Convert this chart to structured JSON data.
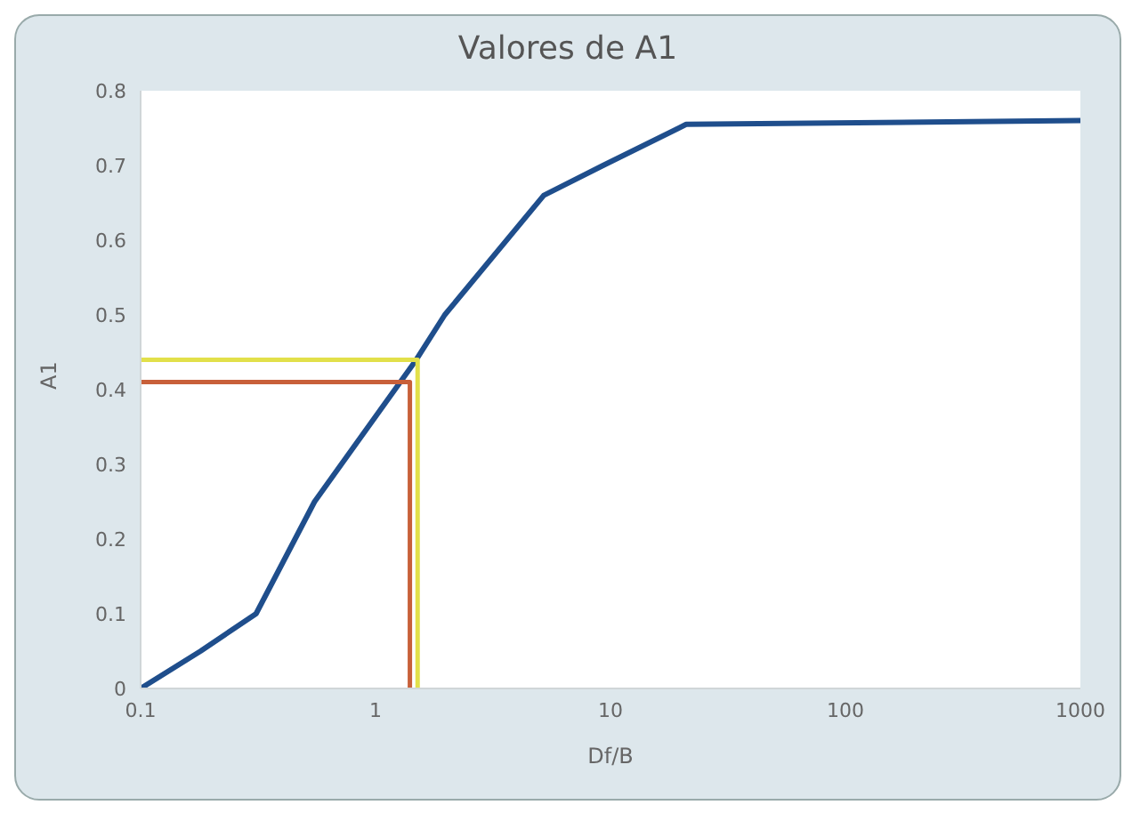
{
  "chart_data": {
    "type": "line",
    "title": "Valores de A1",
    "xlabel": "Df/B",
    "ylabel": "A1",
    "log": "x",
    "xlim": [
      0.1,
      1000
    ],
    "xticks": [
      0.1,
      1,
      10,
      100,
      1000
    ],
    "ylim": [
      0,
      0.8
    ],
    "yticks": [
      0,
      0.1,
      0.2,
      0.3,
      0.4,
      0.5,
      0.6,
      0.7,
      0.8
    ],
    "grid": false,
    "marker": "none",
    "line_style": "solid",
    "series": [
      {
        "color": "#1f4e8c",
        "x": [
          0.1,
          0.18,
          0.31,
          0.55,
          1.49,
          1.97,
          5.2,
          9.3,
          21,
          1000
        ],
        "values": [
          0,
          0.05,
          0.1,
          0.25,
          0.44,
          0.5,
          0.66,
          0.7,
          0.755,
          0.76
        ]
      },
      {
        "color": "#c8603a",
        "x": [
          0.1,
          1.4,
          1.4
        ],
        "values": [
          0.41,
          0.41,
          0
        ]
      },
      {
        "color": "#e2e04a",
        "x": [
          0.1,
          1.51,
          1.51
        ],
        "values": [
          0.44,
          0.44,
          0
        ]
      }
    ]
  }
}
